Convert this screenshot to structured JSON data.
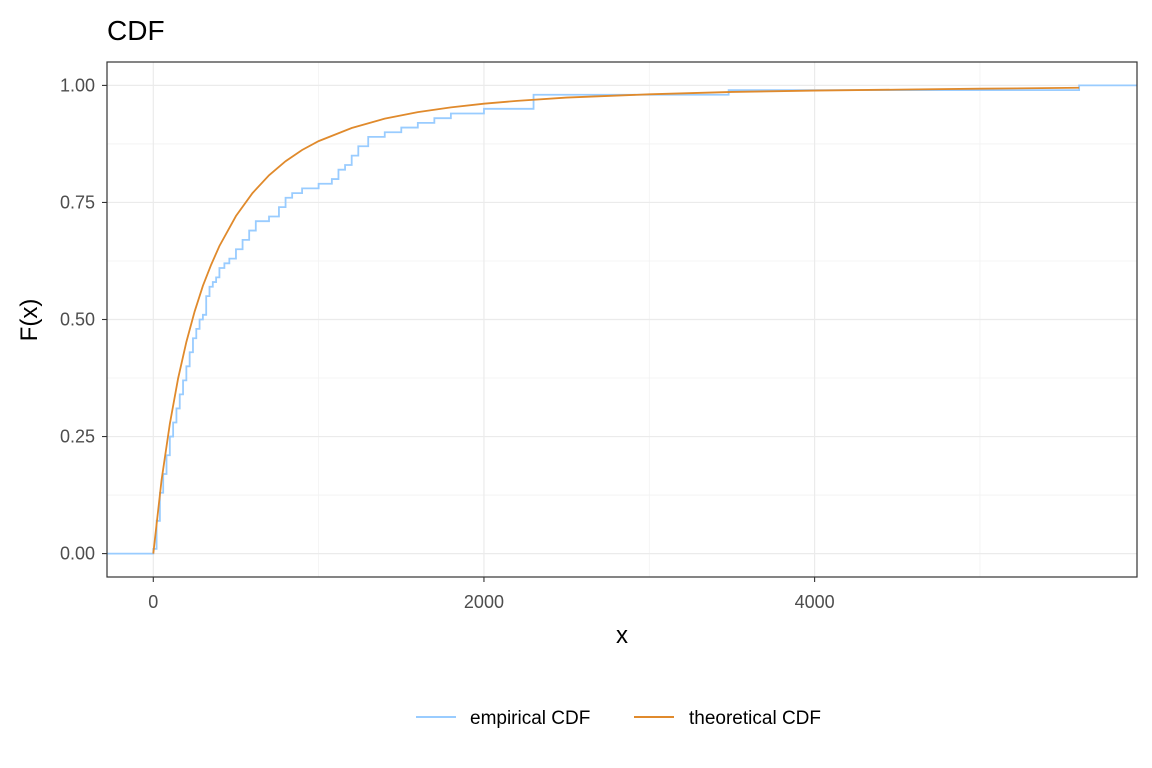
{
  "chart_data": {
    "type": "line",
    "title": "CDF",
    "xlabel": "x",
    "ylabel": "F(x)",
    "xlim": [
      -280,
      5950
    ],
    "ylim": [
      -0.05,
      1.05
    ],
    "x_ticks": [
      0,
      2000,
      4000
    ],
    "x_tick_labels": [
      "0",
      "2000",
      "4000"
    ],
    "x_minor_ticks": [
      1000,
      3000,
      5000
    ],
    "y_ticks": [
      0,
      0.25,
      0.5,
      0.75,
      1.0
    ],
    "y_tick_labels": [
      "0.00",
      "0.25",
      "0.50",
      "0.75",
      "1.00"
    ],
    "y_minor_ticks": [
      0.125,
      0.375,
      0.625,
      0.875
    ],
    "grid": true,
    "legend_position": "bottom",
    "series": [
      {
        "name": "empirical CDF",
        "color": "#99ccff",
        "step": true,
        "x": [
          -280,
          0,
          20,
          40,
          60,
          80,
          100,
          120,
          140,
          160,
          180,
          200,
          220,
          240,
          260,
          280,
          300,
          320,
          340,
          360,
          380,
          400,
          430,
          460,
          500,
          540,
          580,
          620,
          660,
          700,
          760,
          800,
          840,
          900,
          1000,
          1080,
          1120,
          1160,
          1200,
          1240,
          1300,
          1400,
          1500,
          1600,
          1700,
          1800,
          2000,
          2300,
          2800,
          3480,
          5600,
          5950
        ],
        "y": [
          0,
          0.01,
          0.07,
          0.13,
          0.17,
          0.21,
          0.25,
          0.28,
          0.31,
          0.34,
          0.37,
          0.4,
          0.43,
          0.46,
          0.48,
          0.5,
          0.51,
          0.55,
          0.57,
          0.58,
          0.59,
          0.61,
          0.62,
          0.63,
          0.65,
          0.67,
          0.69,
          0.71,
          0.71,
          0.72,
          0.74,
          0.76,
          0.77,
          0.78,
          0.79,
          0.8,
          0.82,
          0.83,
          0.85,
          0.87,
          0.89,
          0.9,
          0.91,
          0.92,
          0.93,
          0.94,
          0.95,
          0.98,
          0.98,
          0.99,
          1.0,
          1.0
        ]
      },
      {
        "name": "theoretical CDF",
        "color": "#e08a2c",
        "step": false,
        "x": [
          0,
          50,
          100,
          150,
          200,
          250,
          300,
          350,
          400,
          500,
          600,
          700,
          800,
          900,
          1000,
          1200,
          1400,
          1600,
          1800,
          2000,
          2200,
          2500,
          3000,
          3500,
          4000,
          4500,
          5000,
          5600
        ],
        "y": [
          0.0,
          0.157,
          0.277,
          0.374,
          0.452,
          0.517,
          0.572,
          0.617,
          0.657,
          0.721,
          0.77,
          0.808,
          0.838,
          0.862,
          0.881,
          0.909,
          0.929,
          0.943,
          0.953,
          0.961,
          0.967,
          0.974,
          0.981,
          0.986,
          0.989,
          0.991,
          0.993,
          0.995
        ]
      }
    ]
  }
}
